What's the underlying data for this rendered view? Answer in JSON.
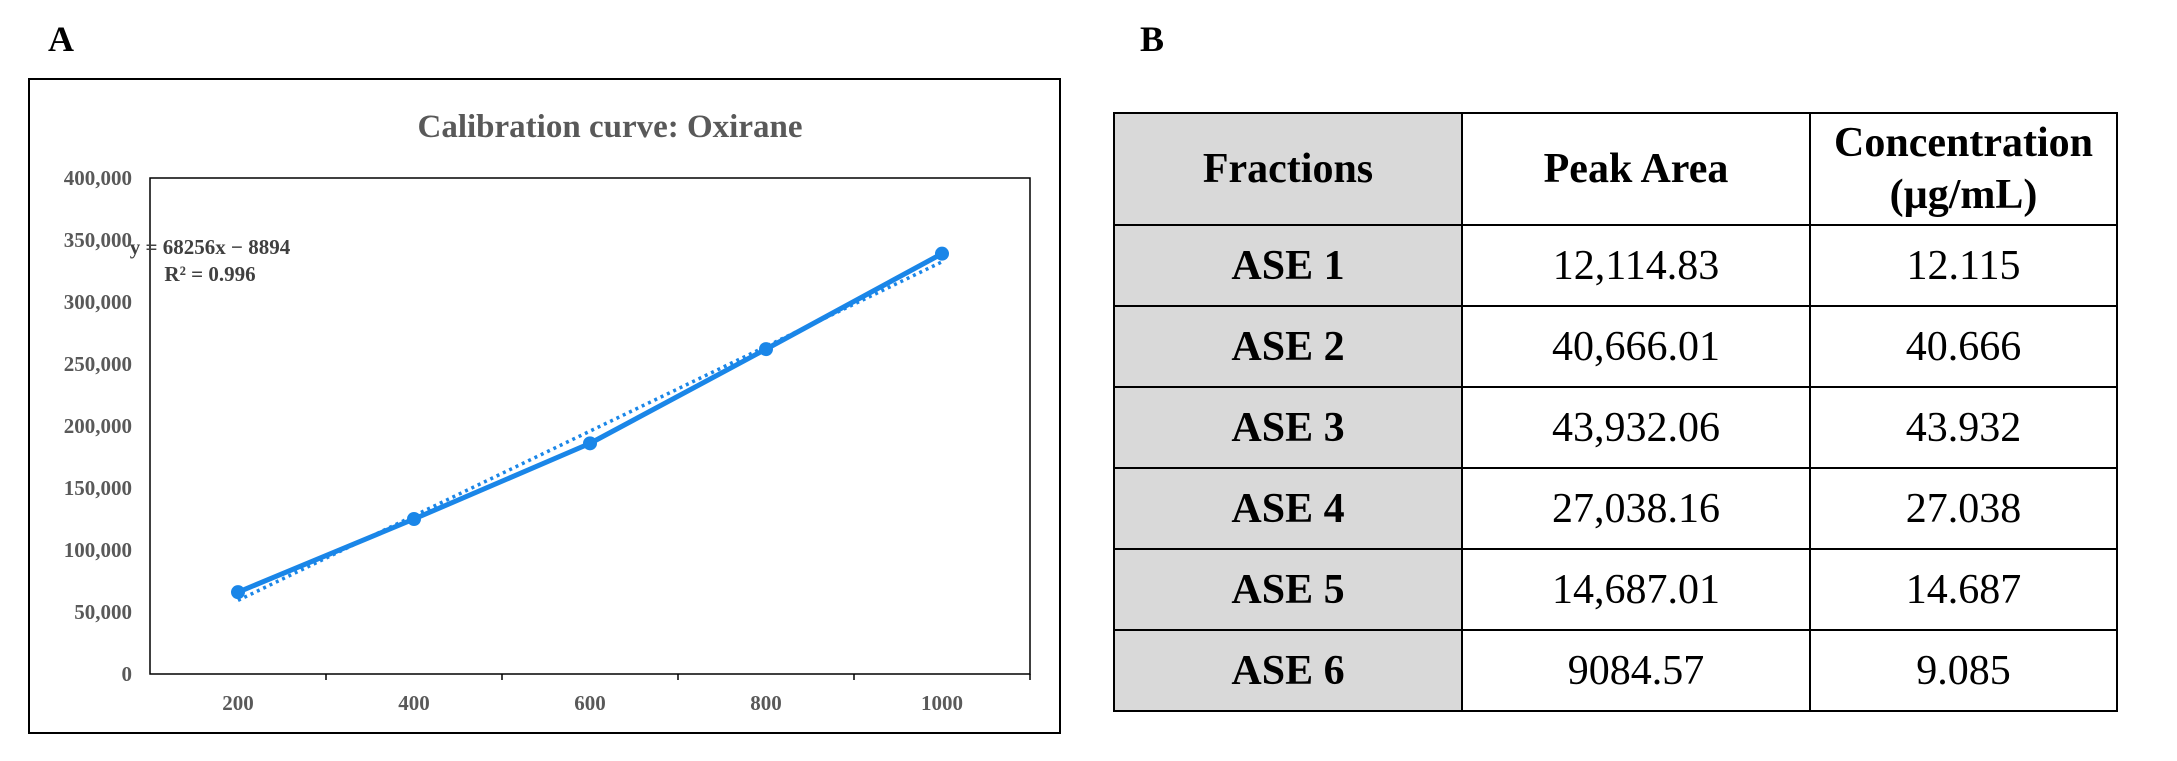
{
  "panels": {
    "a": "A",
    "b": "B"
  },
  "chart_data": {
    "type": "line",
    "title": "Calibration curve: Oxirane",
    "x": [
      200,
      400,
      600,
      800,
      1000
    ],
    "x_ticks": [
      "200",
      "400",
      "600",
      "800",
      "1000"
    ],
    "series": [
      {
        "values": [
          66000,
          125000,
          186000,
          262000,
          339000
        ],
        "color": "#1a86e8",
        "style": "solid-markers"
      }
    ],
    "trendline": {
      "slope": 68256,
      "intercept": -8894,
      "style": "dotted",
      "color": "#1a86e8",
      "equation": "y = 68256x − 8894",
      "r2": "R² = 0.996"
    },
    "ylim": [
      0,
      400000
    ],
    "y_ticks": [
      "0",
      "50,000",
      "100,000",
      "150,000",
      "200,000",
      "250,000",
      "300,000",
      "350,000",
      "400,000"
    ],
    "y_tick_values": [
      0,
      50000,
      100000,
      150000,
      200000,
      250000,
      300000,
      350000,
      400000
    ],
    "grid": false,
    "legend": "none",
    "xlabel": "",
    "ylabel": ""
  },
  "table": {
    "headers": [
      "Fractions",
      "Peak Area",
      "Concentration (µg/mL)"
    ],
    "rows": [
      [
        "ASE 1",
        "12,114.83",
        "12.115"
      ],
      [
        "ASE 2",
        "40,666.01",
        "40.666"
      ],
      [
        "ASE 3",
        "43,932.06",
        "43.932"
      ],
      [
        "ASE 4",
        "27,038.16",
        "27.038"
      ],
      [
        "ASE 5",
        "14,687.01",
        "14.687"
      ],
      [
        "ASE 6",
        "9084.57",
        "9.085"
      ]
    ]
  }
}
